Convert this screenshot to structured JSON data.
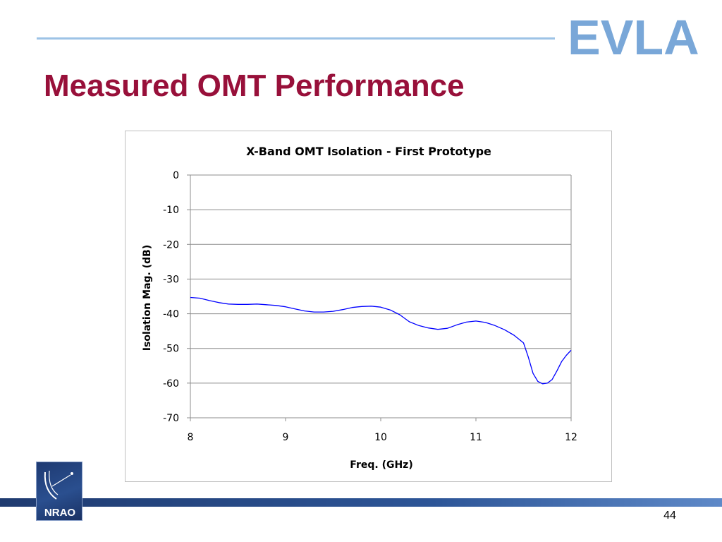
{
  "slide": {
    "title": "Measured OMT Performance",
    "logo_text": "EVLA",
    "org_logo_text": "NRAO",
    "page_number": "44",
    "colors": {
      "title": "#98103a",
      "rule": "#9dc3e6",
      "logo": "#79a7d8",
      "series": "#0000ff"
    }
  },
  "chart_data": {
    "type": "line",
    "title": "X-Band OMT Isolation - First Prototype",
    "xlabel": "Freq. (GHz)",
    "ylabel": "Isolation Mag. (dB)",
    "xlim": [
      8,
      12
    ],
    "ylim": [
      -70,
      0
    ],
    "x_ticks": [
      8,
      9,
      10,
      11,
      12
    ],
    "y_ticks": [
      0,
      -10,
      -20,
      -30,
      -40,
      -50,
      -60,
      -70
    ],
    "x_tick_labels": [
      "8",
      "9",
      "10",
      "11",
      "12"
    ],
    "y_tick_labels": [
      "0",
      "-10",
      "-20",
      "-30",
      "-40",
      "-50",
      "-60",
      "-70"
    ],
    "grid": "horizontal",
    "legend": "none",
    "series": [
      {
        "color": "#0000ff",
        "x": [
          8.0,
          8.1,
          8.2,
          8.3,
          8.4,
          8.5,
          8.6,
          8.7,
          8.8,
          8.9,
          9.0,
          9.1,
          9.2,
          9.3,
          9.4,
          9.5,
          9.6,
          9.7,
          9.8,
          9.9,
          10.0,
          10.1,
          10.2,
          10.3,
          10.4,
          10.5,
          10.6,
          10.7,
          10.8,
          10.9,
          11.0,
          11.1,
          11.2,
          11.3,
          11.4,
          11.5,
          11.55,
          11.6,
          11.65,
          11.7,
          11.75,
          11.8,
          11.85,
          11.9,
          11.95,
          12.0
        ],
        "y": [
          -35.3,
          -35.5,
          -36.2,
          -36.8,
          -37.2,
          -37.3,
          -37.3,
          -37.2,
          -37.4,
          -37.6,
          -38.0,
          -38.6,
          -39.2,
          -39.5,
          -39.5,
          -39.3,
          -38.8,
          -38.2,
          -37.9,
          -37.8,
          -38.1,
          -38.9,
          -40.3,
          -42.3,
          -43.4,
          -44.1,
          -44.5,
          -44.2,
          -43.2,
          -42.4,
          -42.1,
          -42.5,
          -43.4,
          -44.6,
          -46.2,
          -48.4,
          -52.5,
          -57.2,
          -59.5,
          -60.2,
          -60.0,
          -59.0,
          -56.5,
          -53.8,
          -52.0,
          -50.5
        ]
      }
    ]
  }
}
